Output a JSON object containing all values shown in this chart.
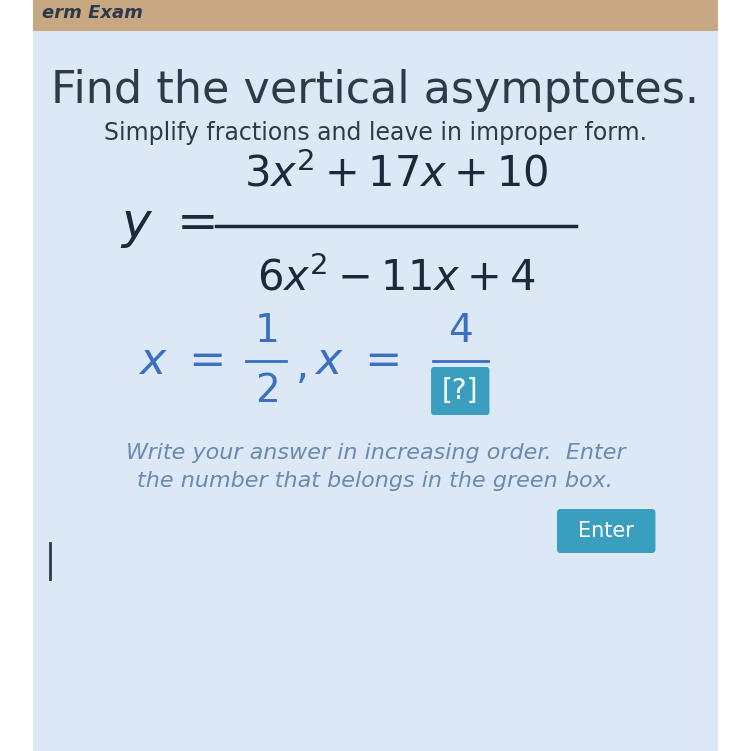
{
  "title": "Find the vertical asymptotes.",
  "subtitle": "Simplify fractions and leave in improper form.",
  "bg_top_color": "#c8a882",
  "bg_main_color": "#dce8f5",
  "title_color": "#2d3a4a",
  "subtitle_color": "#2d3a4a",
  "equation_color": "#1a2a3a",
  "answer_color": "#3a6fc4",
  "instruction_color": "#6a8ab0",
  "enter_btn_color": "#3a9fbf",
  "enter_text_color": "#ffffff",
  "instruction_line1": "Write your answer in increasing order.  Enter",
  "instruction_line2": "the number that belongs in the green box.",
  "enter_label": "Enter"
}
